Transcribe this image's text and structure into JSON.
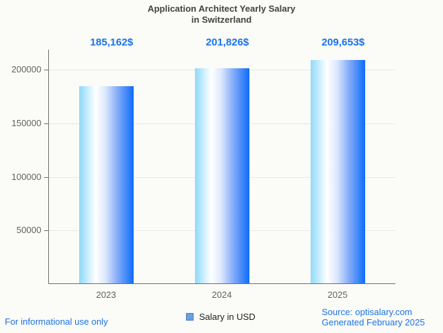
{
  "page": {
    "background": "#fbfbf7"
  },
  "chart_data": {
    "type": "bar",
    "title": "Application Architect Yearly Salary",
    "subtitle": "in Switzerland",
    "categories": [
      "2023",
      "2024",
      "2025"
    ],
    "series": [
      {
        "name": "Salary in USD",
        "values": [
          185162,
          201826,
          209653
        ]
      }
    ],
    "value_labels": [
      "185,162$",
      "201,826$",
      "209,653$"
    ],
    "ylim": [
      0,
      219000
    ],
    "yticks": [
      50000,
      100000,
      150000,
      200000
    ],
    "ytick_labels": [
      "50000",
      "100000",
      "150000",
      "200000"
    ],
    "grid": true,
    "legend_position": "bottom",
    "xlabel": "",
    "ylabel": "",
    "colors": {
      "value_label": "#1a73e8",
      "title": "#424242",
      "tick_label": "#616161",
      "axis_line": "#6e6e6e",
      "gridline": "#e9e8e3",
      "bar_gradient": [
        "#8edafa",
        "#ffffff",
        "#dde8fd",
        "#86adf8",
        "#0d6cfa"
      ],
      "bar_gradient_stops": [
        0,
        30,
        48,
        70,
        100
      ],
      "legend_marker_fill": "#6b9fe4",
      "legend_marker_border": "#4d7dc0"
    }
  },
  "footer": {
    "disclaimer": "For informational use only",
    "source": "Source: optisalary.com",
    "generated": "Generated February 2025",
    "link_color": "#1a73e8"
  }
}
